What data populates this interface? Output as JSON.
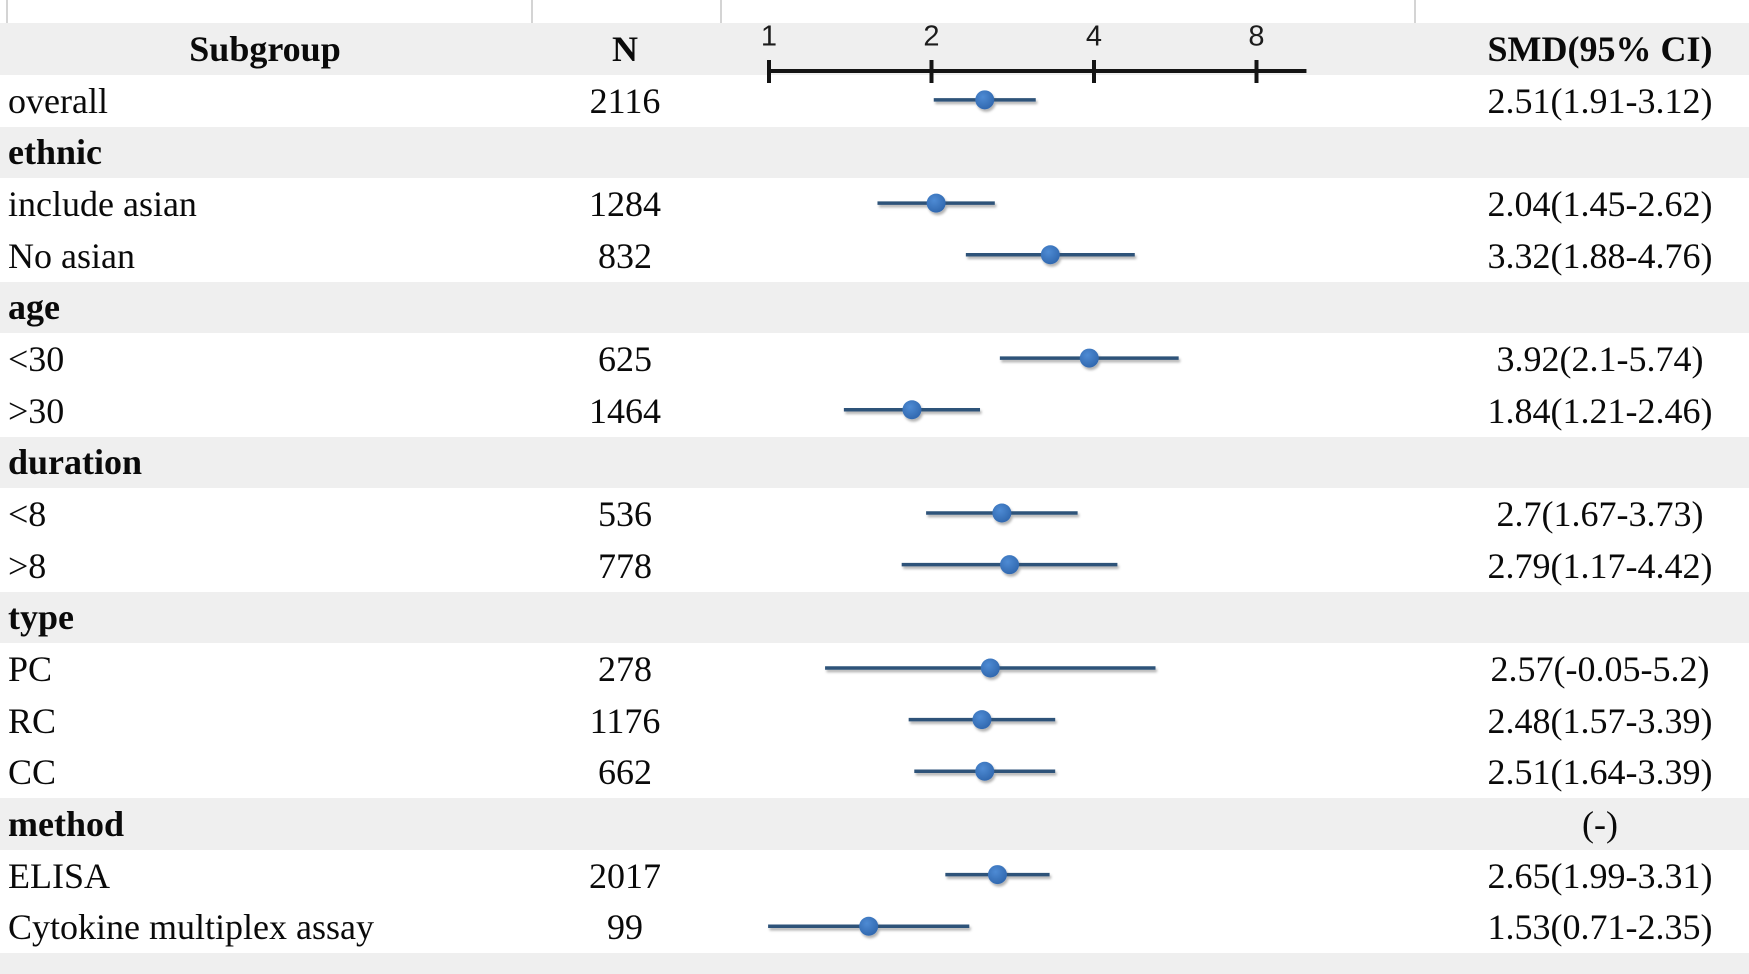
{
  "header": {
    "subgroup": "Subgroup",
    "n": "N",
    "smd": "SMD(95% CI)"
  },
  "colors": {
    "marker_fill": "#3b79c4",
    "marker_fill_light": "#4e8bd4",
    "marker_edge": "#2f66ad",
    "ci_line": "#2e5379",
    "axis": "#141414",
    "band": "#efefef"
  },
  "chart_data": {
    "type": "scatter",
    "subtype": "forest_plot",
    "title": "",
    "x_scale": "log2",
    "x_ticks": [
      1,
      2,
      4,
      8
    ],
    "xlim": [
      1,
      9.9
    ],
    "grid": false,
    "legend": null,
    "rows": [
      {
        "kind": "data",
        "subgroup": "overall",
        "n": "2116",
        "est": 2.51,
        "ci_low": 1.91,
        "ci_high": 3.12,
        "smd_text": "2.51(1.91-3.12)"
      },
      {
        "kind": "group",
        "subgroup": "ethnic",
        "n": "",
        "smd_text": ""
      },
      {
        "kind": "data",
        "subgroup": "include asian",
        "n": "1284",
        "est": 2.04,
        "ci_low": 1.45,
        "ci_high": 2.62,
        "smd_text": "2.04(1.45-2.62)"
      },
      {
        "kind": "data",
        "subgroup": "No asian",
        "n": "832",
        "est": 3.32,
        "ci_low": 1.88,
        "ci_high": 4.76,
        "smd_text": "3.32(1.88-4.76)"
      },
      {
        "kind": "group",
        "subgroup": "age",
        "n": "",
        "smd_text": ""
      },
      {
        "kind": "data",
        "subgroup": "<30",
        "n": "625",
        "est": 3.92,
        "ci_low": 2.1,
        "ci_high": 5.74,
        "smd_text": "3.92(2.1-5.74)"
      },
      {
        "kind": "data",
        "subgroup": ">30",
        "n": "1464",
        "est": 1.84,
        "ci_low": 1.21,
        "ci_high": 2.46,
        "smd_text": "1.84(1.21-2.46)"
      },
      {
        "kind": "group",
        "subgroup": "duration",
        "n": "",
        "smd_text": ""
      },
      {
        "kind": "data",
        "subgroup": "<8",
        "n": "536",
        "est": 2.7,
        "ci_low": 1.67,
        "ci_high": 3.73,
        "smd_text": "2.7(1.67-3.73)"
      },
      {
        "kind": "data",
        "subgroup": ">8",
        "n": "778",
        "est": 2.79,
        "ci_low": 1.17,
        "ci_high": 4.42,
        "smd_text": "2.79(1.17-4.42)"
      },
      {
        "kind": "group",
        "subgroup": "type",
        "n": "",
        "smd_text": ""
      },
      {
        "kind": "data",
        "subgroup": "PC",
        "n": "278",
        "est": 2.57,
        "ci_low": -0.05,
        "ci_high": 5.2,
        "smd_text": "2.57(-0.05-5.2)"
      },
      {
        "kind": "data",
        "subgroup": "RC",
        "n": "1176",
        "est": 2.48,
        "ci_low": 1.57,
        "ci_high": 3.39,
        "smd_text": "2.48(1.57-3.39)"
      },
      {
        "kind": "data",
        "subgroup": "CC",
        "n": "662",
        "est": 2.51,
        "ci_low": 1.64,
        "ci_high": 3.39,
        "smd_text": "2.51(1.64-3.39)"
      },
      {
        "kind": "group",
        "subgroup": "method",
        "n": "",
        "smd_text": "(-)"
      },
      {
        "kind": "data",
        "subgroup": "ELISA",
        "n": "2017",
        "est": 2.65,
        "ci_low": 1.99,
        "ci_high": 3.31,
        "smd_text": "2.65(1.99-3.31)"
      },
      {
        "kind": "data",
        "subgroup": "Cytokine multiplex assay",
        "n": "99",
        "est": 1.53,
        "ci_low": 0.71,
        "ci_high": 2.35,
        "smd_text": "1.53(0.71-2.35)"
      }
    ]
  }
}
